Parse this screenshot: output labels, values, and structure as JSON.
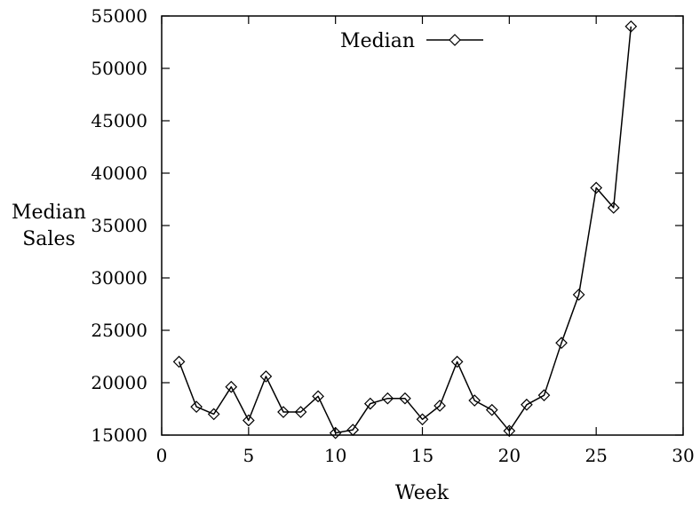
{
  "chart_data": {
    "type": "line",
    "title": "",
    "xlabel": "Week",
    "ylabel": [
      "Median",
      "Sales"
    ],
    "xlim": [
      0,
      30
    ],
    "ylim": [
      15000,
      55000
    ],
    "xticks": [
      0,
      5,
      10,
      15,
      20,
      25,
      30
    ],
    "yticks": [
      15000,
      20000,
      25000,
      30000,
      35000,
      40000,
      45000,
      50000,
      55000
    ],
    "xtick_labels": [
      "0",
      "5",
      "10",
      "15",
      "20",
      "25",
      "30"
    ],
    "ytick_labels": [
      "15000",
      "20000",
      "25000",
      "30000",
      "35000",
      "40000",
      "45000",
      "50000",
      "55000"
    ],
    "grid": false,
    "legend": {
      "position": "top-center"
    },
    "line_color": "#000000",
    "marker": "diamond",
    "series": [
      {
        "name": "Median",
        "x": [
          1,
          2,
          3,
          4,
          5,
          6,
          7,
          8,
          9,
          10,
          11,
          12,
          13,
          14,
          15,
          16,
          17,
          18,
          19,
          20,
          21,
          22,
          23,
          24,
          25,
          26,
          27
        ],
        "values": [
          22000,
          17700,
          17000,
          19600,
          16400,
          20600,
          17200,
          17200,
          18700,
          15200,
          15500,
          18000,
          18500,
          18500,
          16500,
          17800,
          22000,
          18300,
          17400,
          15400,
          17900,
          18800,
          23800,
          28400,
          38600,
          36700,
          54000
        ]
      }
    ]
  }
}
